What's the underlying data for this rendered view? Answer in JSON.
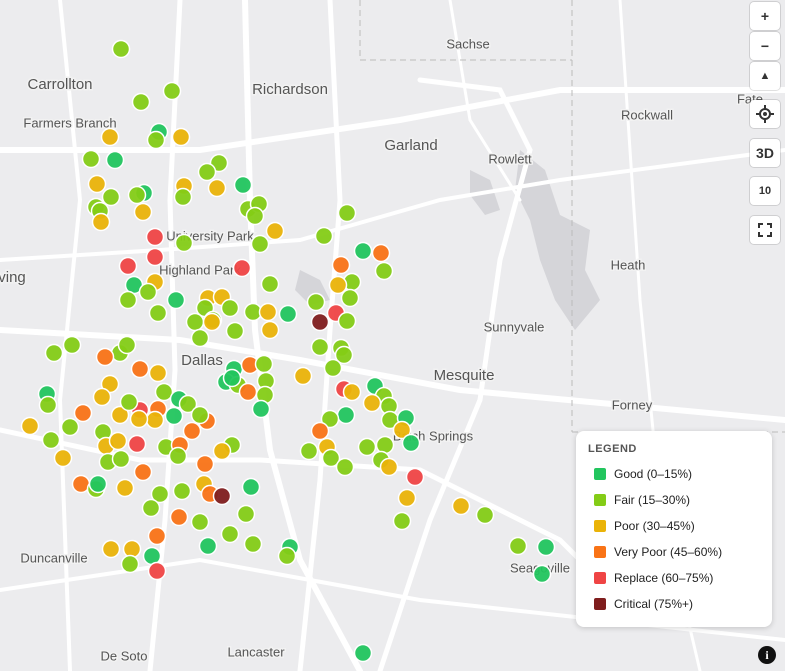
{
  "map": {
    "places": [
      "Carrollton",
      "Farmers Branch",
      "Richardson",
      "Sachse",
      "Garland",
      "Rowlett",
      "Rockwall",
      "Fate",
      "University Park",
      "Highland Park",
      "ving",
      "Dallas",
      "Mesquite",
      "Sunnyvale",
      "Heath",
      "Forney",
      "Balch Springs",
      "Duncanville",
      "Seagoville",
      "De Soto",
      "Lancaster"
    ],
    "controls": {
      "zoom_in": "+",
      "zoom_out": "−",
      "compass": "▲",
      "view3d": "3D",
      "zoom_level": "10",
      "info": "i"
    },
    "legend": {
      "title": "LEGEND",
      "items": [
        {
          "label": "Good (0–15%)",
          "color": "#22c55e"
        },
        {
          "label": "Fair (15–30%)",
          "color": "#84cc16"
        },
        {
          "label": "Poor (30–45%)",
          "color": "#eab308"
        },
        {
          "label": "Very Poor (45–60%)",
          "color": "#f97316"
        },
        {
          "label": "Replace (60–75%)",
          "color": "#ef4444"
        },
        {
          "label": "Critical (75%+)",
          "color": "#7f1d1d"
        }
      ]
    }
  }
}
